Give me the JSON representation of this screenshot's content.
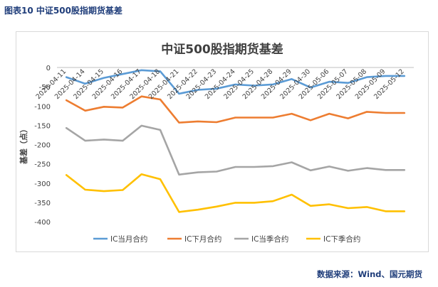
{
  "figure": {
    "caption": "图表10 中证500股指期货基差",
    "source": "数据来源：Wind、国元期货"
  },
  "chart_data": {
    "type": "line",
    "title": "中证500股指期货基差",
    "ylabel": "基差（点）",
    "xlabel": "",
    "ylim": [
      -400,
      0
    ],
    "yticks": [
      0,
      -50,
      -100,
      -150,
      -200,
      -250,
      -300,
      -350,
      -400
    ],
    "grid": false,
    "legend_position": "bottom",
    "x_labels": [
      "2025-04-11",
      "2025-04-14",
      "2025-04-15",
      "2025-04-16",
      "2025-04-17",
      "2025-04-18",
      "2025-04-21",
      "2025-04-22",
      "2025-04-23",
      "2025-04-24",
      "2025-04-25",
      "2025-04-28",
      "2025-04-29",
      "2025-04-30",
      "2025-05-06",
      "2025-05-07",
      "2025-05-08",
      "2025-05-09",
      "2025-05-12"
    ],
    "series": [
      {
        "name": "IC当月合约",
        "color": "#5b9bd5",
        "values": [
          -25,
          -42,
          -27,
          -17,
          -7,
          -10,
          -68,
          -58,
          -55,
          -44,
          -47,
          -44,
          -30,
          -52,
          -37,
          -40,
          -25,
          -22,
          -22
        ]
      },
      {
        "name": "IC下月合约",
        "color": "#ed7d31",
        "values": [
          -85,
          -112,
          -102,
          -104,
          -75,
          -83,
          -143,
          -140,
          -142,
          -130,
          -130,
          -130,
          -120,
          -137,
          -120,
          -132,
          -115,
          -118,
          -118
        ]
      },
      {
        "name": "IC当季合约",
        "color": "#a5a5a5",
        "values": [
          -157,
          -190,
          -187,
          -190,
          -151,
          -162,
          -278,
          -272,
          -270,
          -258,
          -258,
          -256,
          -246,
          -267,
          -257,
          -268,
          -261,
          -266,
          -266
        ]
      },
      {
        "name": "IC下季合约",
        "color": "#ffc000",
        "values": [
          -279,
          -317,
          -321,
          -318,
          -277,
          -290,
          -375,
          -369,
          -361,
          -351,
          -351,
          -347,
          -330,
          -359,
          -355,
          -365,
          -362,
          -373,
          -373
        ]
      }
    ]
  }
}
